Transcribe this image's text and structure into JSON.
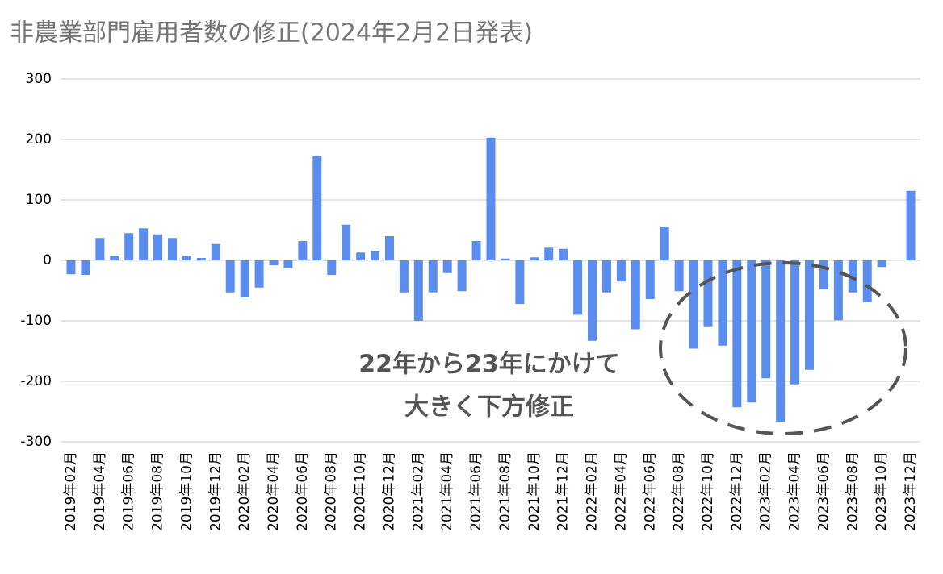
{
  "chart_data": {
    "type": "bar",
    "title": "非農業部門雇用者数の修正(2024年2月2日発表)",
    "annotation": [
      "22年から23年にかけて",
      "大きく下方修正"
    ],
    "categories": [
      "2019年02月",
      null,
      "2019年04月",
      null,
      "2019年06月",
      null,
      "2019年08月",
      null,
      "2019年10月",
      null,
      "2019年12月",
      null,
      "2020年02月",
      null,
      "2020年04月",
      null,
      "2020年06月",
      null,
      "2020年08月",
      null,
      "2020年10月",
      null,
      "2020年12月",
      null,
      "2021年02月",
      null,
      "2021年04月",
      null,
      "2021年06月",
      null,
      "2021年08月",
      null,
      "2021年10月",
      null,
      "2021年12月",
      null,
      "2022年02月",
      null,
      "2022年04月",
      null,
      "2022年06月",
      null,
      "2022年08月",
      null,
      "2022年10月",
      null,
      "2022年12月",
      null,
      "2023年02月",
      null,
      "2023年04月",
      null,
      "2023年06月",
      null,
      "2023年08月",
      null,
      "2023年10月",
      null,
      "2023年12月"
    ],
    "values": [
      -23,
      -24,
      37,
      8,
      45,
      53,
      43,
      37,
      8,
      4,
      27,
      -53,
      -61,
      -45,
      -8,
      -13,
      32,
      173,
      -24,
      59,
      13,
      16,
      40,
      -53,
      -100,
      -53,
      -21,
      -51,
      32,
      203,
      3,
      -72,
      5,
      21,
      19,
      -90,
      -133,
      -53,
      -35,
      -114,
      -64,
      56,
      -51,
      -146,
      -109,
      -141,
      -243,
      -235,
      -195,
      -267,
      -205,
      -181,
      -48,
      -99,
      -53,
      -69,
      -11,
      0,
      115
    ],
    "color": "#5b8def",
    "ylim": [
      -300,
      300
    ],
    "yticks": [
      -300,
      -200,
      -100,
      0,
      100,
      200,
      300
    ],
    "grid": true
  }
}
